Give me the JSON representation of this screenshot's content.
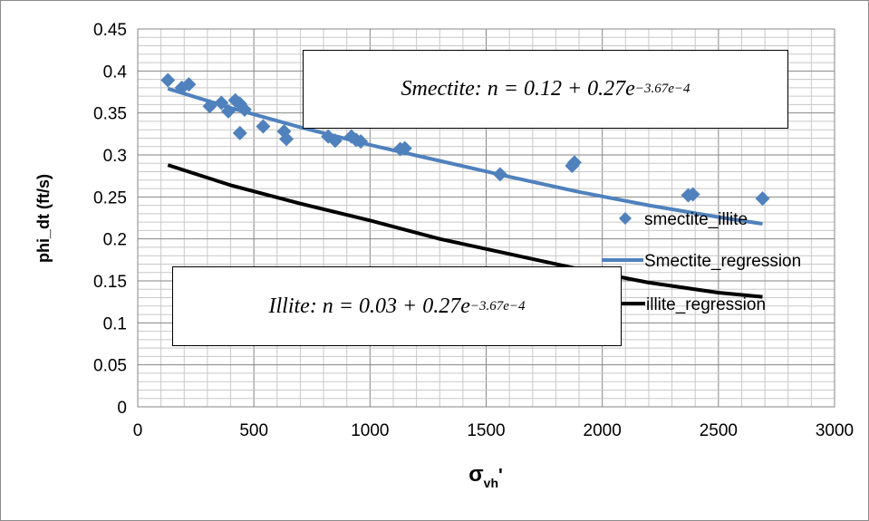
{
  "chart_data": {
    "type": "scatter",
    "xlabel_main": "σ",
    "xlabel_sub": "vh",
    "xlabel_suffix": "'",
    "ylabel": "phi_dt (ft/s)",
    "xlim": [
      0,
      3000
    ],
    "ylim": [
      0,
      0.45
    ],
    "x_ticks": [
      "0",
      "500",
      "1000",
      "1500",
      "2000",
      "2500",
      "3000"
    ],
    "y_ticks": [
      "0",
      "0.05",
      "0.1",
      "0.15",
      "0.2",
      "0.25",
      "0.3",
      "0.35",
      "0.4",
      "0.45"
    ],
    "grid": true,
    "legend_position": "right",
    "series": [
      {
        "name": "smectite_illite",
        "kind": "scatter",
        "marker": "diamond",
        "color": "#4f81bd",
        "points": [
          [
            130,
            0.389
          ],
          [
            190,
            0.38
          ],
          [
            220,
            0.384
          ],
          [
            310,
            0.358
          ],
          [
            360,
            0.362
          ],
          [
            390,
            0.352
          ],
          [
            420,
            0.365
          ],
          [
            440,
            0.361
          ],
          [
            460,
            0.354
          ],
          [
            440,
            0.326
          ],
          [
            540,
            0.334
          ],
          [
            630,
            0.328
          ],
          [
            640,
            0.319
          ],
          [
            820,
            0.322
          ],
          [
            850,
            0.317
          ],
          [
            920,
            0.322
          ],
          [
            940,
            0.318
          ],
          [
            960,
            0.316
          ],
          [
            1130,
            0.307
          ],
          [
            1150,
            0.308
          ],
          [
            1560,
            0.277
          ],
          [
            1870,
            0.287
          ],
          [
            1880,
            0.291
          ],
          [
            2370,
            0.252
          ],
          [
            2390,
            0.253
          ],
          [
            2690,
            0.248
          ]
        ]
      },
      {
        "name": "Smectite_regression",
        "kind": "line",
        "color": "#4f81bd",
        "x": [
          130,
          400,
          700,
          1000,
          1300,
          1600,
          1900,
          2200,
          2500,
          2690
        ],
        "y": [
          0.379,
          0.356,
          0.333,
          0.312,
          0.293,
          0.274,
          0.256,
          0.24,
          0.226,
          0.218
        ]
      },
      {
        "name": "illite_regression",
        "kind": "line",
        "color": "#000000",
        "x": [
          130,
          400,
          700,
          1000,
          1300,
          1600,
          1900,
          2200,
          2500,
          2690
        ],
        "y": [
          0.288,
          0.264,
          0.242,
          0.222,
          0.2,
          0.182,
          0.164,
          0.148,
          0.136,
          0.131
        ]
      }
    ]
  },
  "annotations": {
    "smectite_eq": {
      "name": "Smectite",
      "body": ": n = 0.12 + 0.27e",
      "exponent": "−3.67e−4"
    },
    "illite_eq": {
      "name": "Illite",
      "body": ": n = 0.03 + 0.27e",
      "exponent": "−3.67e−4"
    }
  }
}
